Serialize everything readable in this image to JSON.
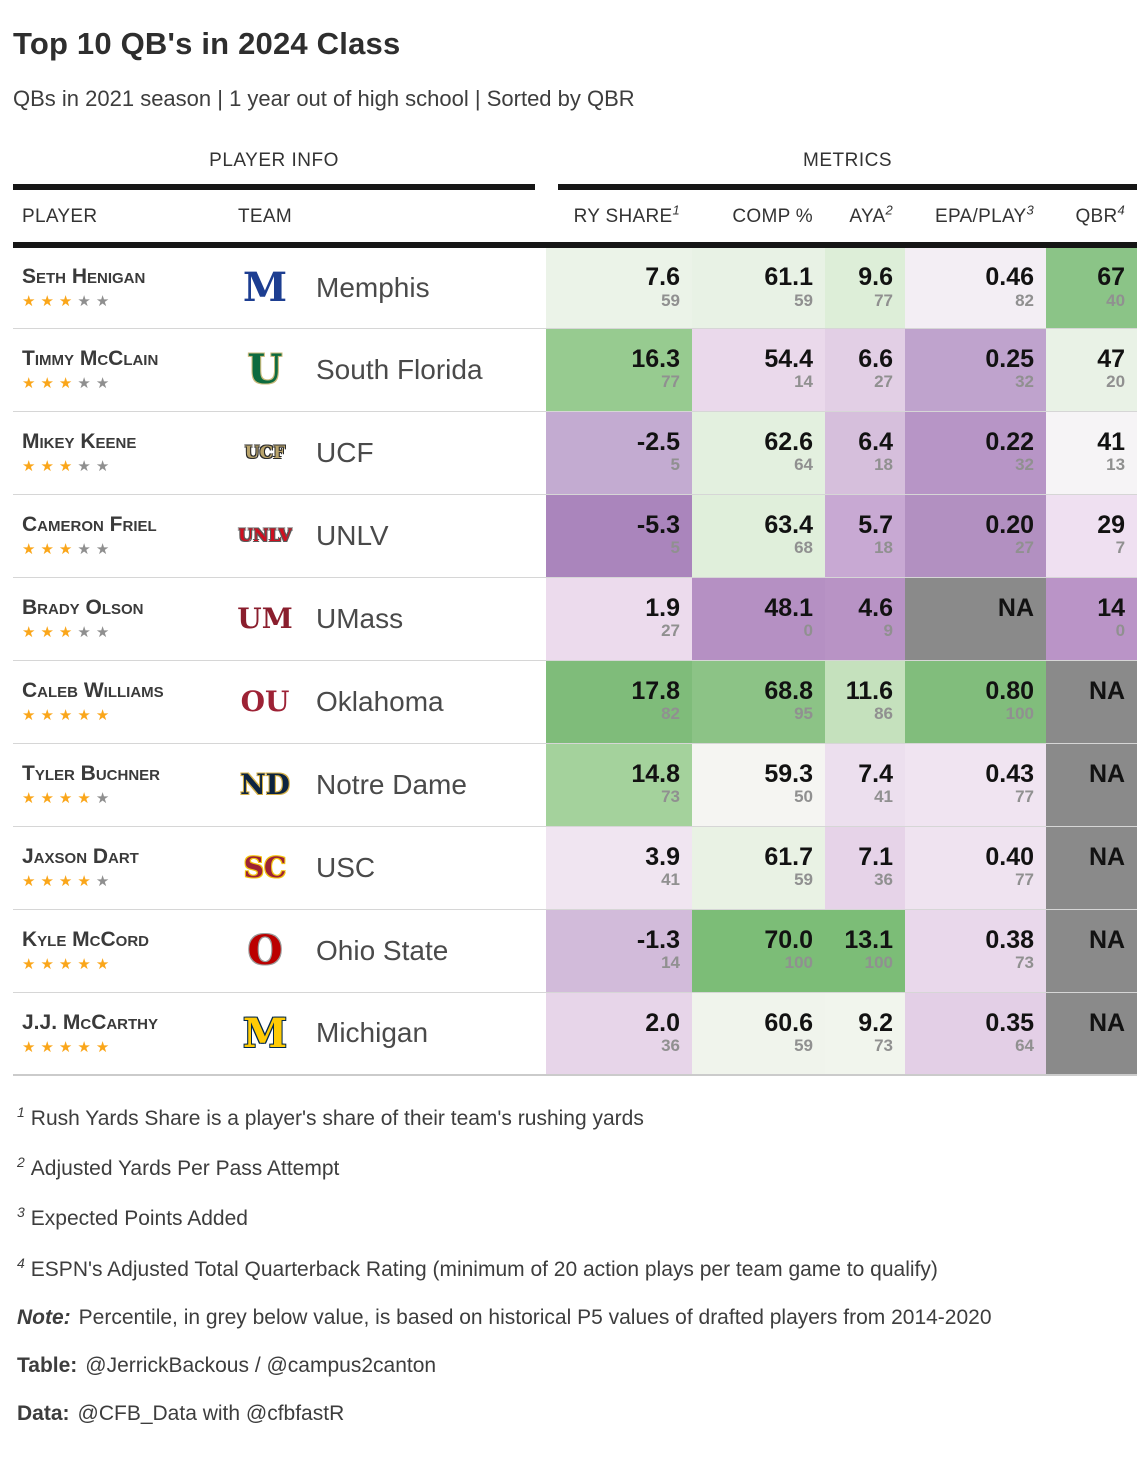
{
  "header": {
    "title": "Top 10 QB's in 2024 Class",
    "subtitle": "QBs in 2021 season | 1 year out of high school | Sorted by QBR"
  },
  "chart_data": {
    "type": "table",
    "spanners": {
      "player_info": "PLAYER INFO",
      "metrics": "METRICS"
    },
    "columns": {
      "player": "PLAYER",
      "team": "TEAM",
      "metrics": [
        {
          "key": "ry-share",
          "label": "RY SHARE",
          "sup": "1"
        },
        {
          "key": "comp-pct",
          "label": "COMP %",
          "sup": ""
        },
        {
          "key": "aya",
          "label": "AYA",
          "sup": "2"
        },
        {
          "key": "epa-play",
          "label": "EPA/PLAY",
          "sup": "3"
        },
        {
          "key": "qbr",
          "label": "QBR",
          "sup": "4"
        }
      ]
    },
    "rows": [
      {
        "player": "Seth Henigan",
        "stars": 3,
        "team": "Memphis",
        "logo": {
          "text": "M",
          "fg": "#1d3e91",
          "outline": ""
        },
        "cells": [
          {
            "value": "7.6",
            "pct": "59",
            "bg": "#ebf3e8"
          },
          {
            "value": "61.1",
            "pct": "59",
            "bg": "#e8f2e5"
          },
          {
            "value": "9.6",
            "pct": "77",
            "bg": "#ddeed8"
          },
          {
            "value": "0.46",
            "pct": "82",
            "bg": "#f3eef4"
          },
          {
            "value": "67",
            "pct": "40",
            "bg": "#8bc487"
          }
        ]
      },
      {
        "player": "Timmy McClain",
        "stars": 3,
        "team": "South Florida",
        "logo": {
          "text": "U",
          "fg": "#0d6b3f",
          "outline": "#c9b97a"
        },
        "cells": [
          {
            "value": "16.3",
            "pct": "77",
            "bg": "#97cb90"
          },
          {
            "value": "54.4",
            "pct": "14",
            "bg": "#ead9eb"
          },
          {
            "value": "6.6",
            "pct": "27",
            "bg": "#e2cfe5"
          },
          {
            "value": "0.25",
            "pct": "32",
            "bg": "#bfa3cd"
          },
          {
            "value": "47",
            "pct": "20",
            "bg": "#e9f2e6"
          }
        ]
      },
      {
        "player": "Mikey Keene",
        "stars": 3,
        "team": "UCF",
        "logo": {
          "text": "UCF",
          "fg": "#b9a46c",
          "outline": "#2b2b2b"
        },
        "cells": [
          {
            "value": "-2.5",
            "pct": "5",
            "bg": "#c3abd1"
          },
          {
            "value": "62.6",
            "pct": "64",
            "bg": "#e3f0df"
          },
          {
            "value": "6.4",
            "pct": "18",
            "bg": "#d6bfdc"
          },
          {
            "value": "0.22",
            "pct": "32",
            "bg": "#b795c6"
          },
          {
            "value": "41",
            "pct": "13",
            "bg": "#f6f4f6"
          }
        ]
      },
      {
        "player": "Cameron Friel",
        "stars": 3,
        "team": "UNLV",
        "logo": {
          "text": "UNLV",
          "fg": "#cf1020",
          "outline": "#5a5a5a"
        },
        "cells": [
          {
            "value": "-5.3",
            "pct": "5",
            "bg": "#aa85bc"
          },
          {
            "value": "63.4",
            "pct": "68",
            "bg": "#e0efdb"
          },
          {
            "value": "5.7",
            "pct": "18",
            "bg": "#c8a9d3"
          },
          {
            "value": "0.20",
            "pct": "27",
            "bg": "#b290c1"
          },
          {
            "value": "29",
            "pct": "7",
            "bg": "#efe0f1"
          }
        ]
      },
      {
        "player": "Brady Olson",
        "stars": 3,
        "team": "UMass",
        "logo": {
          "text": "UM",
          "fg": "#8a1e2d",
          "outline": ""
        },
        "cells": [
          {
            "value": "1.9",
            "pct": "27",
            "bg": "#ecdbed"
          },
          {
            "value": "48.1",
            "pct": "0",
            "bg": "#b590c3"
          },
          {
            "value": "4.6",
            "pct": "9",
            "bg": "#b893c5"
          },
          {
            "value": "NA",
            "pct": "",
            "bg": "#8a8a8a"
          },
          {
            "value": "14",
            "pct": "0",
            "bg": "#ba94c7"
          }
        ]
      },
      {
        "player": "Caleb Williams",
        "stars": 5,
        "team": "Oklahoma",
        "logo": {
          "text": "OU",
          "fg": "#9d2235",
          "outline": ""
        },
        "cells": [
          {
            "value": "17.8",
            "pct": "82",
            "bg": "#7fbc7a"
          },
          {
            "value": "68.8",
            "pct": "95",
            "bg": "#8cc386"
          },
          {
            "value": "11.6",
            "pct": "86",
            "bg": "#c5e1bd"
          },
          {
            "value": "0.80",
            "pct": "100",
            "bg": "#81bd7c"
          },
          {
            "value": "NA",
            "pct": "",
            "bg": "#8a8a8a"
          }
        ]
      },
      {
        "player": "Tyler Buchner",
        "stars": 4,
        "team": "Notre Dame",
        "logo": {
          "text": "ND",
          "fg": "#0c2340",
          "outline": "#d4b048"
        },
        "cells": [
          {
            "value": "14.8",
            "pct": "73",
            "bg": "#a4d29c"
          },
          {
            "value": "59.3",
            "pct": "50",
            "bg": "#f5f5f2"
          },
          {
            "value": "7.4",
            "pct": "41",
            "bg": "#ecdfee"
          },
          {
            "value": "0.43",
            "pct": "77",
            "bg": "#f0e4f1"
          },
          {
            "value": "NA",
            "pct": "",
            "bg": "#8a8a8a"
          }
        ]
      },
      {
        "player": "Jaxson Dart",
        "stars": 4,
        "team": "USC",
        "logo": {
          "text": "SC",
          "fg": "#9d2235",
          "outline": "#f2c50f"
        },
        "cells": [
          {
            "value": "3.9",
            "pct": "41",
            "bg": "#f0e5f1"
          },
          {
            "value": "61.7",
            "pct": "59",
            "bg": "#e9f2e4"
          },
          {
            "value": "7.1",
            "pct": "36",
            "bg": "#e6d3e8"
          },
          {
            "value": "0.40",
            "pct": "77",
            "bg": "#efe3f0"
          },
          {
            "value": "NA",
            "pct": "",
            "bg": "#8a8a8a"
          }
        ]
      },
      {
        "player": "Kyle McCord",
        "stars": 5,
        "team": "Ohio State",
        "logo": {
          "text": "O",
          "fg": "#bb0000",
          "outline": "#9b9b9b"
        },
        "cells": [
          {
            "value": "-1.3",
            "pct": "14",
            "bg": "#d2bbda"
          },
          {
            "value": "70.0",
            "pct": "100",
            "bg": "#7cbd77"
          },
          {
            "value": "13.1",
            "pct": "100",
            "bg": "#7cbd77"
          },
          {
            "value": "0.38",
            "pct": "73",
            "bg": "#e9d8eb"
          },
          {
            "value": "NA",
            "pct": "",
            "bg": "#8a8a8a"
          }
        ]
      },
      {
        "player": "J.J. McCarthy",
        "stars": 5,
        "team": "Michigan",
        "logo": {
          "text": "M",
          "fg": "#ffcb05",
          "outline": "#00274c"
        },
        "cells": [
          {
            "value": "2.0",
            "pct": "36",
            "bg": "#e7d5e9"
          },
          {
            "value": "60.6",
            "pct": "59",
            "bg": "#f0f4ec"
          },
          {
            "value": "9.2",
            "pct": "73",
            "bg": "#f1f5ed"
          },
          {
            "value": "0.35",
            "pct": "64",
            "bg": "#e3cfe6"
          },
          {
            "value": "NA",
            "pct": "",
            "bg": "#8a8a8a"
          }
        ]
      }
    ]
  },
  "footnotes": [
    {
      "sup": "1",
      "text": "Rush Yards Share is a player's share of their team's rushing yards"
    },
    {
      "sup": "2",
      "text": "Adjusted Yards Per Pass Attempt"
    },
    {
      "sup": "3",
      "text": "Expected Points Added"
    },
    {
      "sup": "4",
      "text": "ESPN's Adjusted Total Quarterback Rating (minimum of 20 action plays per team game to qualify)"
    }
  ],
  "note": {
    "label": "Note:",
    "text": "Percentile, in grey below value, is based on historical P5 values of drafted players from 2014-2020"
  },
  "credits": {
    "table": {
      "label": "Table:",
      "text": "@JerrickBackous / @campus2canton"
    },
    "data": {
      "label": "Data:",
      "text": "@CFB_Data with @cfbfastR"
    }
  },
  "colors": {
    "star_gold": "#faa61a",
    "star_grey": "#8f8f8f",
    "na_bg": "#8a8a8a",
    "header_rule": "#161616"
  }
}
